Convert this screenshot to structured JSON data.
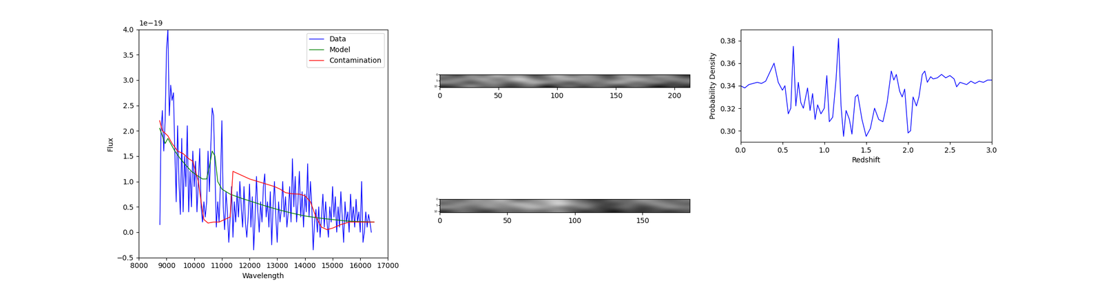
{
  "chart_data": [
    {
      "type": "line",
      "xlabel": "Wavelength",
      "ylabel": "Flux",
      "annotations": [
        {
          "text": "1e−19"
        }
      ],
      "legend": "upper right",
      "xlim": [
        8000,
        17000
      ],
      "xticks": [
        8000,
        9000,
        10000,
        11000,
        12000,
        13000,
        14000,
        15000,
        16000,
        17000
      ],
      "ylim": [
        -0.5,
        4.0
      ],
      "yticks": [
        {
          "value": -0.5,
          "label": "−0.5"
        },
        {
          "value": 0.0,
          "label": "0.0"
        },
        {
          "value": 0.5,
          "label": "0.5"
        },
        {
          "value": 1.0,
          "label": "1.0"
        },
        {
          "value": 1.5,
          "label": "1.5"
        },
        {
          "value": 2.0,
          "label": "2.0"
        },
        {
          "value": 2.5,
          "label": "2.5"
        },
        {
          "value": 3.0,
          "label": "3.0"
        },
        {
          "value": 3.5,
          "label": "3.5"
        },
        {
          "value": 4.0,
          "label": "4.0"
        }
      ],
      "series": [
        {
          "name": "Data",
          "color": "#0000ff",
          "x": [
            8760,
            8800,
            8850,
            8900,
            8950,
            9000,
            9050,
            9100,
            9150,
            9200,
            9250,
            9300,
            9350,
            9400,
            9450,
            9500,
            9550,
            9600,
            9650,
            9700,
            9750,
            9800,
            9850,
            9900,
            9950,
            10000,
            10050,
            10100,
            10150,
            10200,
            10250,
            10300,
            10350,
            10400,
            10450,
            10500,
            10550,
            10600,
            10650,
            10700,
            10750,
            10800,
            10850,
            10900,
            10950,
            11000,
            11050,
            11100,
            11150,
            11200,
            11250,
            11300,
            11350,
            11400,
            11450,
            11500,
            11550,
            11600,
            11650,
            11700,
            11750,
            11800,
            11850,
            11900,
            11950,
            12000,
            12050,
            12100,
            12150,
            12200,
            12250,
            12300,
            12350,
            12400,
            12450,
            12500,
            12550,
            12600,
            12650,
            12700,
            12750,
            12800,
            12850,
            12900,
            12950,
            13000,
            13050,
            13100,
            13150,
            13200,
            13250,
            13300,
            13350,
            13400,
            13450,
            13500,
            13550,
            13600,
            13650,
            13700,
            13750,
            13800,
            13850,
            13900,
            13950,
            14000,
            14050,
            14100,
            14150,
            14200,
            14250,
            14300,
            14350,
            14400,
            14450,
            14500,
            14550,
            14600,
            14650,
            14700,
            14750,
            14800,
            14850,
            14900,
            14950,
            15000,
            15050,
            15100,
            15150,
            15200,
            15250,
            15300,
            15350,
            15400,
            15450,
            15500,
            15550,
            15600,
            15650,
            15700,
            15750,
            15800,
            15850,
            15900,
            15950,
            16000,
            16050,
            16100,
            16150,
            16200,
            16250,
            16300,
            16350,
            16400
          ],
          "values": [
            0.15,
            2.0,
            2.4,
            1.6,
            2.2,
            3.6,
            4.0,
            2.3,
            2.9,
            2.6,
            2.75,
            1.6,
            0.6,
            2.1,
            1.0,
            0.35,
            1.85,
            0.4,
            1.5,
            0.9,
            2.1,
            0.4,
            1.2,
            0.5,
            1.6,
            0.9,
            1.4,
            0.4,
            1.0,
            1.65,
            0.5,
            0.2,
            0.6,
            0.3,
            0.6,
            1.6,
            0.8,
            1.7,
            2.45,
            2.3,
            1.2,
            0.1,
            0.6,
            0.2,
            1.0,
            2.2,
            0.5,
            0.05,
            0.8,
            0.4,
            -0.2,
            0.3,
            0.9,
            -0.1,
            0.6,
            0.2,
            0.8,
            0.3,
            1.0,
            0.5,
            0.1,
            0.9,
            0.2,
            -0.1,
            0.3,
            0.95,
            0.1,
            0.7,
            -0.35,
            0.3,
            1.1,
            0.4,
            0.0,
            0.6,
            0.2,
            0.9,
            1.15,
            0.3,
            0.6,
            0.1,
            0.8,
            -0.25,
            0.5,
            1.0,
            0.3,
            -0.2,
            0.6,
            0.2,
            0.45,
            1.0,
            0.3,
            0.7,
            0.1,
            0.4,
            0.9,
            0.2,
            1.45,
            0.5,
            1.1,
            0.2,
            0.6,
            1.2,
            0.3,
            0.8,
            0.1,
            0.75,
            0.4,
            1.35,
            0.3,
            1.0,
            0.5,
            -0.35,
            0.2,
            0.45,
            0.0,
            0.5,
            -0.1,
            0.3,
            0.75,
            0.1,
            0.6,
            0.2,
            -0.1,
            0.5,
            0.2,
            0.9,
            0.3,
            0.7,
            0.0,
            0.5,
            0.1,
            0.8,
            0.3,
            -0.2,
            0.6,
            0.2,
            0.4,
            0.0,
            0.75,
            0.2,
            0.5,
            0.1,
            0.65,
            0.2,
            0.4,
            0.0,
            1.0,
            -0.2,
            0.0,
            0.4,
            0.1,
            0.35,
            0.2,
            0.0
          ]
        },
        {
          "name": "Model",
          "color": "#008000",
          "x": [
            8750,
            8850,
            8950,
            9050,
            9150,
            9300,
            9500,
            9700,
            9900,
            10100,
            10300,
            10450,
            10550,
            10650,
            10750,
            10850,
            11000,
            11300,
            11700,
            12100,
            12500,
            13000,
            13500,
            14000,
            14500,
            15000,
            15500,
            16000,
            16500
          ],
          "values": [
            2.05,
            1.9,
            1.75,
            1.85,
            1.75,
            1.6,
            1.45,
            1.32,
            1.2,
            1.12,
            1.05,
            1.05,
            1.3,
            1.6,
            1.5,
            1.0,
            0.85,
            0.75,
            0.67,
            0.6,
            0.53,
            0.45,
            0.38,
            0.32,
            0.28,
            0.25,
            0.22,
            0.21,
            0.2
          ]
        },
        {
          "name": "Contamination",
          "color": "#ff0000",
          "x": [
            8750,
            8850,
            8950,
            9050,
            9200,
            9400,
            9600,
            9800,
            9950,
            10050,
            10150,
            10250,
            10350,
            10500,
            10700,
            10900,
            11100,
            11300,
            11400,
            11600,
            11800,
            12000,
            12300,
            12600,
            12900,
            13100,
            13300,
            13500,
            13800,
            14000,
            14200,
            14400,
            14600,
            14800,
            15000,
            15300,
            15600,
            16000,
            16500
          ],
          "values": [
            2.2,
            2.0,
            1.95,
            1.9,
            1.75,
            1.6,
            1.55,
            1.45,
            1.4,
            1.2,
            1.0,
            0.6,
            0.25,
            0.18,
            0.2,
            0.2,
            0.25,
            0.3,
            1.2,
            1.15,
            1.1,
            1.05,
            1.0,
            0.95,
            0.9,
            0.85,
            0.78,
            0.76,
            0.75,
            0.72,
            0.6,
            0.3,
            0.1,
            0.05,
            0.08,
            0.15,
            0.2,
            0.2,
            0.2
          ]
        }
      ]
    },
    {
      "type": "heatmap",
      "color": "gray",
      "xlim": [
        0,
        213
      ],
      "xticks": [
        0,
        50,
        100,
        150,
        200
      ],
      "ylim": [
        11,
        0
      ],
      "yticks": [
        0,
        5,
        10
      ],
      "cells": [
        [
          0.5,
          0.3,
          0.6,
          0.4,
          0.7,
          0.5,
          0.6,
          0.3,
          0.5,
          0.7,
          0.4,
          0.6,
          0.5,
          0.3,
          0.6,
          0.5,
          0.4,
          0.6,
          0.5,
          0.3
        ],
        [
          0.4,
          0.6,
          0.5,
          0.7,
          0.4,
          0.6,
          0.8,
          0.5,
          0.4,
          0.6,
          0.7,
          0.5,
          0.6,
          0.4,
          0.5,
          0.7,
          0.6,
          0.4,
          0.6,
          0.5
        ],
        [
          0.6,
          0.5,
          0.3,
          0.5,
          0.6,
          0.4,
          0.5,
          0.7,
          0.6,
          0.5,
          0.3,
          0.6,
          0.4,
          0.6,
          0.7,
          0.4,
          0.5,
          0.6,
          0.3,
          0.5
        ],
        [
          0.3,
          0.4,
          0.6,
          0.4,
          0.5,
          0.3,
          0.4,
          0.5,
          0.2,
          0.4,
          0.5,
          0.3,
          0.5,
          0.4,
          0.3,
          0.5,
          0.4,
          0.2,
          0.4,
          0.3
        ]
      ]
    },
    {
      "type": "heatmap",
      "color": "gray",
      "xlim": [
        0,
        185
      ],
      "xticks": [
        0,
        50,
        100,
        150
      ],
      "ylim": [
        11,
        0
      ],
      "yticks": [
        0,
        5,
        10
      ],
      "cells": [
        [
          0.5,
          0.4,
          0.6,
          0.5,
          0.7,
          0.4,
          0.5,
          0.6,
          0.7,
          0.5,
          0.4,
          0.3,
          0.5,
          0.4,
          0.6,
          0.5,
          0.4,
          0.5
        ],
        [
          0.4,
          0.6,
          0.5,
          0.6,
          0.5,
          0.7,
          0.6,
          0.5,
          0.8,
          0.6,
          0.5,
          0.4,
          0.3,
          0.5,
          0.4,
          0.6,
          0.5,
          0.4
        ],
        [
          0.6,
          0.5,
          0.4,
          0.6,
          0.5,
          0.5,
          0.7,
          0.6,
          0.5,
          0.4,
          0.6,
          0.3,
          0.4,
          0.5,
          0.3,
          0.4,
          0.6,
          0.5
        ],
        [
          0.3,
          0.5,
          0.4,
          0.3,
          0.5,
          0.4,
          0.5,
          0.4,
          0.6,
          0.4,
          0.3,
          0.4,
          0.2,
          0.4,
          0.3,
          0.4,
          0.3,
          0.4
        ]
      ]
    },
    {
      "type": "line",
      "xlabel": "Redshift",
      "ylabel": "Probability Density",
      "xlim": [
        0.0,
        3.0
      ],
      "xticks": [
        {
          "value": 0.0,
          "label": "0.0"
        },
        {
          "value": 0.5,
          "label": "0.5"
        },
        {
          "value": 1.0,
          "label": "1.0"
        },
        {
          "value": 1.5,
          "label": "1.5"
        },
        {
          "value": 2.0,
          "label": "2.0"
        },
        {
          "value": 2.5,
          "label": "2.5"
        },
        {
          "value": 3.0,
          "label": "3.0"
        }
      ],
      "ylim": [
        0.29,
        0.39
      ],
      "yticks": [
        {
          "value": 0.3,
          "label": "0.30"
        },
        {
          "value": 0.32,
          "label": "0.32"
        },
        {
          "value": 0.34,
          "label": "0.34"
        },
        {
          "value": 0.36,
          "label": "0.36"
        },
        {
          "value": 0.38,
          "label": "0.38"
        }
      ],
      "series": [
        {
          "color": "#0000ff",
          "x": [
            0.0,
            0.05,
            0.1,
            0.15,
            0.2,
            0.25,
            0.3,
            0.35,
            0.4,
            0.45,
            0.5,
            0.53,
            0.57,
            0.6,
            0.63,
            0.66,
            0.69,
            0.72,
            0.75,
            0.8,
            0.83,
            0.86,
            0.89,
            0.92,
            0.96,
            1.0,
            1.03,
            1.06,
            1.1,
            1.14,
            1.17,
            1.2,
            1.23,
            1.26,
            1.3,
            1.33,
            1.37,
            1.4,
            1.45,
            1.5,
            1.55,
            1.6,
            1.65,
            1.7,
            1.75,
            1.8,
            1.83,
            1.86,
            1.9,
            1.93,
            1.96,
            2.0,
            2.03,
            2.06,
            2.1,
            2.13,
            2.17,
            2.2,
            2.23,
            2.27,
            2.3,
            2.35,
            2.4,
            2.45,
            2.5,
            2.55,
            2.58,
            2.62,
            2.7,
            2.75,
            2.8,
            2.85,
            2.9,
            2.95,
            3.0
          ],
          "values": [
            0.34,
            0.338,
            0.341,
            0.342,
            0.343,
            0.342,
            0.344,
            0.352,
            0.36,
            0.343,
            0.336,
            0.34,
            0.315,
            0.32,
            0.375,
            0.322,
            0.343,
            0.325,
            0.32,
            0.338,
            0.318,
            0.333,
            0.31,
            0.323,
            0.315,
            0.32,
            0.349,
            0.308,
            0.312,
            0.345,
            0.382,
            0.322,
            0.295,
            0.318,
            0.31,
            0.297,
            0.33,
            0.332,
            0.31,
            0.295,
            0.302,
            0.32,
            0.31,
            0.308,
            0.325,
            0.353,
            0.345,
            0.35,
            0.335,
            0.33,
            0.337,
            0.298,
            0.3,
            0.33,
            0.322,
            0.33,
            0.35,
            0.353,
            0.343,
            0.348,
            0.346,
            0.347,
            0.35,
            0.347,
            0.349,
            0.346,
            0.339,
            0.343,
            0.341,
            0.344,
            0.342,
            0.344,
            0.343,
            0.345,
            0.345
          ]
        }
      ]
    }
  ]
}
